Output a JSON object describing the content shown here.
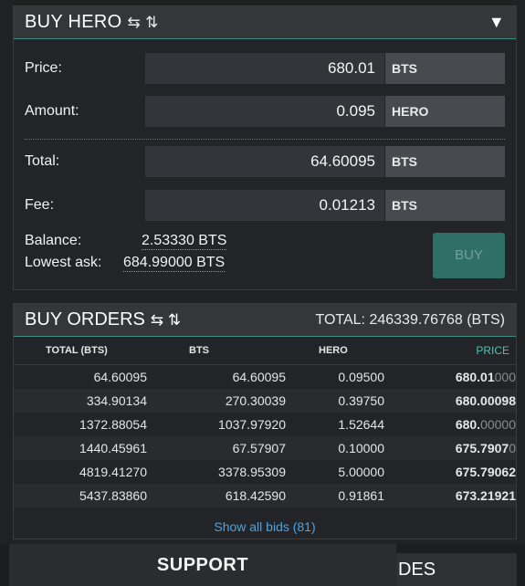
{
  "buy_panel": {
    "title": "BUY HERO",
    "arrows": "⇆ ⇅",
    "collapse_icon": "▼",
    "price_label": "Price:",
    "price_value": "680.01",
    "price_unit": "BTS",
    "amount_label": "Amount:",
    "amount_value": "0.095",
    "amount_unit": "HERO",
    "total_label": "Total:",
    "total_value": "64.60095",
    "total_unit": "BTS",
    "fee_label": "Fee:",
    "fee_value": "0.01213",
    "fee_unit": "BTS",
    "balance_label": "Balance:",
    "balance_value": "2.53330 BTS",
    "lowest_ask_label": "Lowest ask:",
    "lowest_ask_value": "684.99000 BTS",
    "buy_button": "BUY"
  },
  "orders_panel": {
    "title": "BUY ORDERS",
    "arrows": "⇆ ⇅",
    "total": "TOTAL: 246339.76768 (BTS)",
    "columns": [
      "TOTAL (BTS)",
      "BTS",
      "HERO",
      "PRICE"
    ],
    "rows": [
      {
        "total": "64.60095",
        "bts": "64.60095",
        "hero": "0.09500",
        "price_main": "680.01",
        "price_dim": "000"
      },
      {
        "total": "334.90134",
        "bts": "270.30039",
        "hero": "0.39750",
        "price_main": "680.00098",
        "price_dim": ""
      },
      {
        "total": "1372.88054",
        "bts": "1037.97920",
        "hero": "1.52644",
        "price_main": "680.",
        "price_dim": "00000"
      },
      {
        "total": "1440.45961",
        "bts": "67.57907",
        "hero": "0.10000",
        "price_main": "675.7907",
        "price_dim": "0"
      },
      {
        "total": "4819.41270",
        "bts": "3378.95309",
        "hero": "5.00000",
        "price_main": "675.79062",
        "price_dim": ""
      },
      {
        "total": "5437.83860",
        "bts": "618.42590",
        "hero": "0.91861",
        "price_main": "673.21921",
        "price_dim": ""
      }
    ],
    "show_all": "Show all bids (81)"
  },
  "bottom": {
    "support": "SUPPORT",
    "trades_fragment": "DES"
  }
}
